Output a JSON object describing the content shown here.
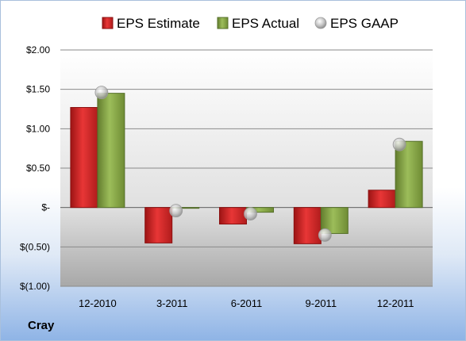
{
  "company": "Cray",
  "chart_data": {
    "type": "bar",
    "title": "",
    "xlabel": "",
    "ylabel": "",
    "categories": [
      "12-2010",
      "3-2011",
      "6-2011",
      "9-2011",
      "12-2011"
    ],
    "series": [
      {
        "name": "EPS Estimate",
        "kind": "bar",
        "color": "#d42a2a",
        "values": [
          1.27,
          -0.45,
          -0.21,
          -0.46,
          0.22
        ]
      },
      {
        "name": "EPS Actual",
        "kind": "bar",
        "color": "#8aac49",
        "values": [
          1.45,
          -0.01,
          -0.06,
          -0.33,
          0.84
        ]
      },
      {
        "name": "EPS GAAP",
        "kind": "marker",
        "color": "#c8c8c8",
        "values": [
          1.46,
          -0.04,
          -0.08,
          -0.35,
          0.8
        ]
      }
    ],
    "ylim": [
      -1.0,
      2.0
    ],
    "yticks": [
      2.0,
      1.5,
      1.0,
      0.5,
      0,
      -0.5,
      -1.0
    ],
    "ytick_labels": [
      "$2.00",
      "$1.50",
      "$1.00",
      "$0.50",
      "$-",
      "$(0.50)",
      "$(1.00)"
    ],
    "grid": true,
    "legend": "top"
  }
}
